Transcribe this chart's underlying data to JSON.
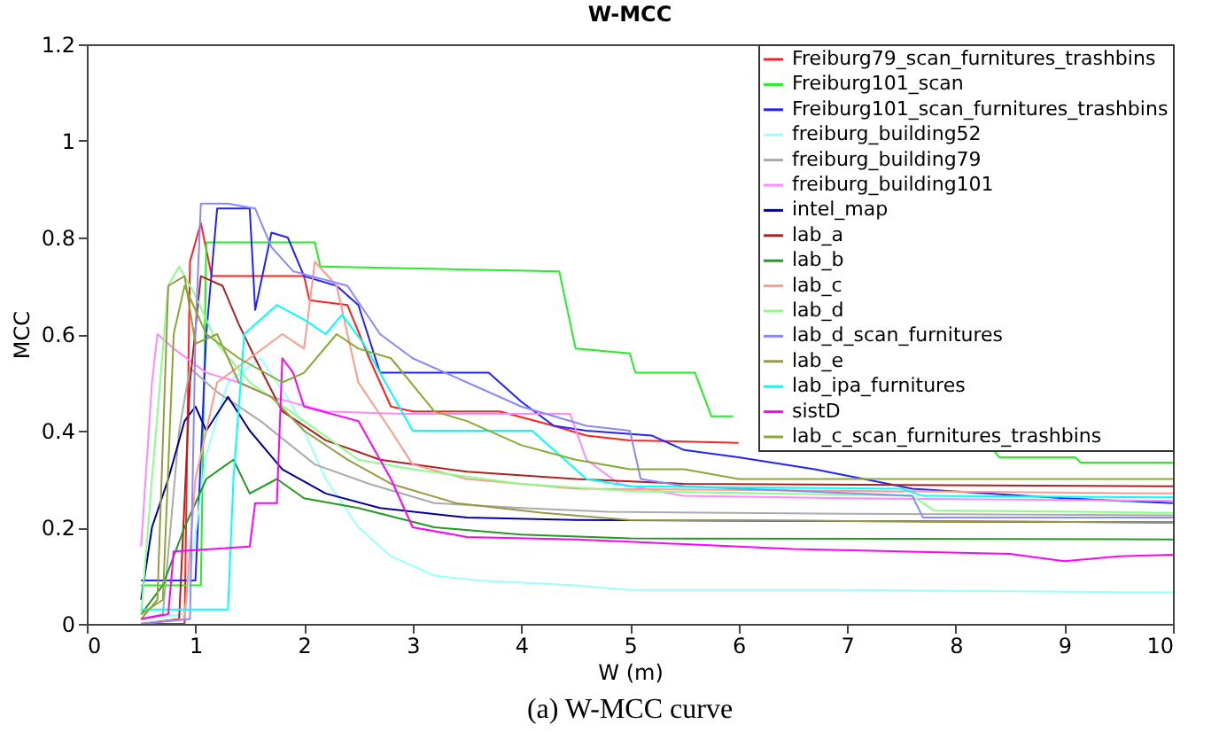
{
  "chart_data": {
    "type": "line",
    "title": "W-MCC",
    "xlabel": "W (m)",
    "ylabel": "MCC",
    "annotations": [
      "(a) W-MCC curve"
    ],
    "xlim": [
      0,
      10
    ],
    "ylim": [
      0,
      1.2
    ],
    "xticks": [
      0,
      1,
      2,
      3,
      4,
      5,
      6,
      7,
      8,
      9,
      10
    ],
    "yticks": [
      {
        "value": 0,
        "label": "0"
      },
      0.2,
      0.4,
      0.6,
      0.8,
      {
        "value": 1,
        "label": "1"
      },
      1.2
    ],
    "grid": false,
    "legend": "top right",
    "marker": "none",
    "line_style": "solid",
    "series": [
      {
        "name": "Freiburg79_scan_furnitures_trashbins",
        "color": "#ff2020",
        "x": [
          0.5,
          0.9,
          0.95,
          1.05,
          1.15,
          1.6,
          2.0,
          2.05,
          2.4,
          2.6,
          2.8,
          3.0,
          3.8,
          4.3,
          4.6,
          5,
          6.0
        ],
        "values": [
          0.0,
          0.0,
          0.75,
          0.83,
          0.72,
          0.72,
          0.72,
          0.67,
          0.66,
          0.55,
          0.45,
          0.44,
          0.44,
          0.41,
          0.39,
          0.38,
          0.375
        ]
      },
      {
        "name": "Freiburg101_scan",
        "color": "#22ee22",
        "x": [
          0.5,
          1.05,
          1.1,
          2.1,
          2.15,
          4.35,
          4.5,
          5.0,
          5.05,
          5.6,
          5.75,
          5.95,
          7.2,
          8.35,
          8.4,
          9.1,
          9.15,
          10
        ],
        "values": [
          0.08,
          0.08,
          0.79,
          0.79,
          0.74,
          0.73,
          0.57,
          0.56,
          0.52,
          0.52,
          0.43,
          0.43,
          null,
          0.36,
          0.345,
          0.345,
          0.334,
          0.334
        ]
      },
      {
        "name": "Freiburg101_scan_furnitures_trashbins",
        "color": "#2222ff",
        "x": [
          0.5,
          1.0,
          1.1,
          1.2,
          1.5,
          1.55,
          1.7,
          1.85,
          2.0,
          2.3,
          2.5,
          2.7,
          3.7,
          4.0,
          4.3,
          4.6,
          5.2,
          5.5,
          6.0,
          6.7,
          7.6,
          9.0,
          10
        ],
        "values": [
          0.09,
          0.09,
          0.6,
          0.86,
          0.86,
          0.65,
          0.81,
          0.8,
          0.72,
          0.7,
          0.66,
          0.52,
          0.52,
          0.46,
          0.41,
          0.4,
          0.39,
          0.36,
          0.345,
          0.32,
          0.28,
          0.26,
          0.25
        ]
      },
      {
        "name": "freiburg_building52",
        "color": "#99ffff",
        "x": [
          0.5,
          0.9,
          1.1,
          1.3,
          1.6,
          1.9,
          2.2,
          2.5,
          2.8,
          3.2,
          3.6,
          4.5,
          5.0,
          7,
          10
        ],
        "values": [
          0.01,
          0.02,
          0.35,
          0.5,
          0.55,
          0.45,
          0.3,
          0.2,
          0.14,
          0.1,
          0.09,
          0.08,
          0.07,
          0.07,
          0.065
        ]
      },
      {
        "name": "freiburg_building79",
        "color": "#aaaaaa",
        "x": [
          0.5,
          0.7,
          0.85,
          0.95,
          1.2,
          1.6,
          2.1,
          2.6,
          3.2,
          4,
          4.8,
          7,
          10
        ],
        "values": [
          0.01,
          0.02,
          0.4,
          0.53,
          0.48,
          0.42,
          0.33,
          0.29,
          0.25,
          0.24,
          0.232,
          0.228,
          0.225
        ]
      },
      {
        "name": "freiburg_building101",
        "color": "#ff88ff",
        "x": [
          0.5,
          0.6,
          0.65,
          0.8,
          1.1,
          1.4,
          1.7,
          2.2,
          2.9,
          4.45,
          4.6,
          4.9,
          5.5,
          7,
          10
        ],
        "values": [
          0.16,
          0.5,
          0.6,
          0.57,
          0.52,
          0.5,
          0.47,
          0.44,
          0.435,
          0.435,
          0.34,
          0.29,
          0.265,
          0.26,
          0.255
        ]
      },
      {
        "name": "intel_map",
        "color": "#000099",
        "x": [
          0.5,
          0.6,
          0.75,
          0.9,
          1.0,
          1.1,
          1.3,
          1.5,
          1.8,
          2.2,
          2.7,
          3.5,
          4.5,
          10
        ],
        "values": [
          0.05,
          0.2,
          0.3,
          0.42,
          0.45,
          0.4,
          0.47,
          0.4,
          0.32,
          0.27,
          0.24,
          0.22,
          0.215,
          0.21
        ]
      },
      {
        "name": "lab_a",
        "color": "#aa2222",
        "x": [
          0.5,
          0.85,
          0.95,
          1.05,
          1.25,
          1.4,
          1.55,
          1.8,
          2.2,
          2.7,
          3.5,
          4.5,
          5.5,
          10
        ],
        "values": [
          0.0,
          0.01,
          0.5,
          0.72,
          0.7,
          0.62,
          0.55,
          0.44,
          0.38,
          0.34,
          0.315,
          0.3,
          0.29,
          0.285
        ]
      },
      {
        "name": "lab_b",
        "color": "#229922",
        "x": [
          0.5,
          0.7,
          0.9,
          1.1,
          1.35,
          1.5,
          1.75,
          2.0,
          2.5,
          3.2,
          4.0,
          5,
          10
        ],
        "values": [
          0.02,
          0.08,
          0.2,
          0.3,
          0.34,
          0.27,
          0.3,
          0.26,
          0.24,
          0.2,
          0.185,
          0.177,
          0.175
        ]
      },
      {
        "name": "lab_c",
        "color": "#ff9988",
        "x": [
          0.5,
          0.9,
          1.0,
          1.2,
          1.5,
          1.8,
          2.0,
          2.1,
          2.3,
          2.5,
          2.8,
          3.0,
          3.5,
          4.5,
          10
        ],
        "values": [
          0.0,
          0.01,
          0.3,
          0.5,
          0.55,
          0.6,
          0.57,
          0.75,
          0.7,
          0.5,
          0.4,
          0.33,
          0.3,
          0.28,
          0.27
        ]
      },
      {
        "name": "lab_d",
        "color": "#88ff88",
        "x": [
          0.5,
          0.6,
          0.75,
          0.85,
          1.0,
          1.2,
          1.5,
          2.0,
          2.5,
          3.0,
          4.0,
          5.0,
          7.6,
          7.8,
          10
        ],
        "values": [
          0.02,
          0.3,
          0.7,
          0.74,
          0.68,
          0.58,
          0.5,
          0.42,
          0.34,
          0.32,
          0.29,
          0.275,
          0.265,
          0.235,
          0.23
        ]
      },
      {
        "name": "lab_d_scan_furnitures",
        "color": "#8888ff",
        "x": [
          0.5,
          0.95,
          1.0,
          1.05,
          1.3,
          1.55,
          1.7,
          1.9,
          2.4,
          2.7,
          3.0,
          3.5,
          4.0,
          4.6,
          5.0,
          5.1,
          5.5,
          7.6,
          7.7,
          10
        ],
        "values": [
          0.0,
          0.01,
          0.6,
          0.87,
          0.87,
          0.86,
          0.78,
          0.73,
          0.7,
          0.6,
          0.55,
          0.5,
          0.45,
          0.41,
          0.4,
          0.3,
          0.285,
          0.265,
          0.22,
          0.22
        ]
      },
      {
        "name": "lab_e",
        "color": "#999944",
        "x": [
          0.5,
          0.65,
          0.75,
          0.9,
          1.0,
          1.2,
          1.4,
          1.7,
          2.0,
          2.4,
          2.8,
          3.4,
          4.2,
          5,
          10
        ],
        "values": [
          0.01,
          0.05,
          0.7,
          0.72,
          0.58,
          0.6,
          0.5,
          0.47,
          0.4,
          0.34,
          0.29,
          0.25,
          0.23,
          0.215,
          0.21
        ]
      },
      {
        "name": "lab_ipa_furnitures",
        "color": "#00ffff",
        "x": [
          0.5,
          1.3,
          1.35,
          1.45,
          1.75,
          2.0,
          2.2,
          2.35,
          2.55,
          2.8,
          3.0,
          4.1,
          4.6,
          5.0,
          7.5,
          7.7,
          10
        ],
        "values": [
          0.03,
          0.03,
          0.3,
          0.6,
          0.66,
          0.63,
          0.6,
          0.64,
          0.58,
          0.48,
          0.4,
          0.4,
          0.3,
          0.285,
          0.28,
          0.265,
          0.262
        ]
      },
      {
        "name": "sistD",
        "color": "#ff00ff",
        "x": [
          0.5,
          0.75,
          0.8,
          1.5,
          1.55,
          1.75,
          1.8,
          1.9,
          2.0,
          2.5,
          2.8,
          3.0,
          3.5,
          4.5,
          5.0,
          6.5,
          8.5,
          9.0,
          9.5,
          10
        ],
        "values": [
          0.01,
          0.02,
          0.15,
          0.16,
          0.25,
          0.25,
          0.55,
          0.52,
          0.45,
          0.42,
          0.3,
          0.2,
          0.18,
          0.175,
          0.17,
          0.155,
          0.145,
          0.13,
          0.14,
          0.143
        ]
      },
      {
        "name": "lab_c_scan_furnitures_trashbins",
        "color": "#88aa33",
        "x": [
          0.5,
          0.7,
          0.8,
          0.9,
          1.1,
          1.4,
          1.8,
          2.0,
          2.3,
          2.5,
          2.8,
          3.2,
          3.5,
          4.0,
          4.5,
          5,
          5.5,
          6,
          10
        ],
        "values": [
          0.02,
          0.05,
          0.6,
          0.7,
          0.6,
          0.55,
          0.5,
          0.52,
          0.6,
          0.57,
          0.55,
          0.44,
          0.42,
          0.37,
          0.34,
          0.32,
          0.32,
          0.3,
          0.3
        ]
      }
    ]
  }
}
